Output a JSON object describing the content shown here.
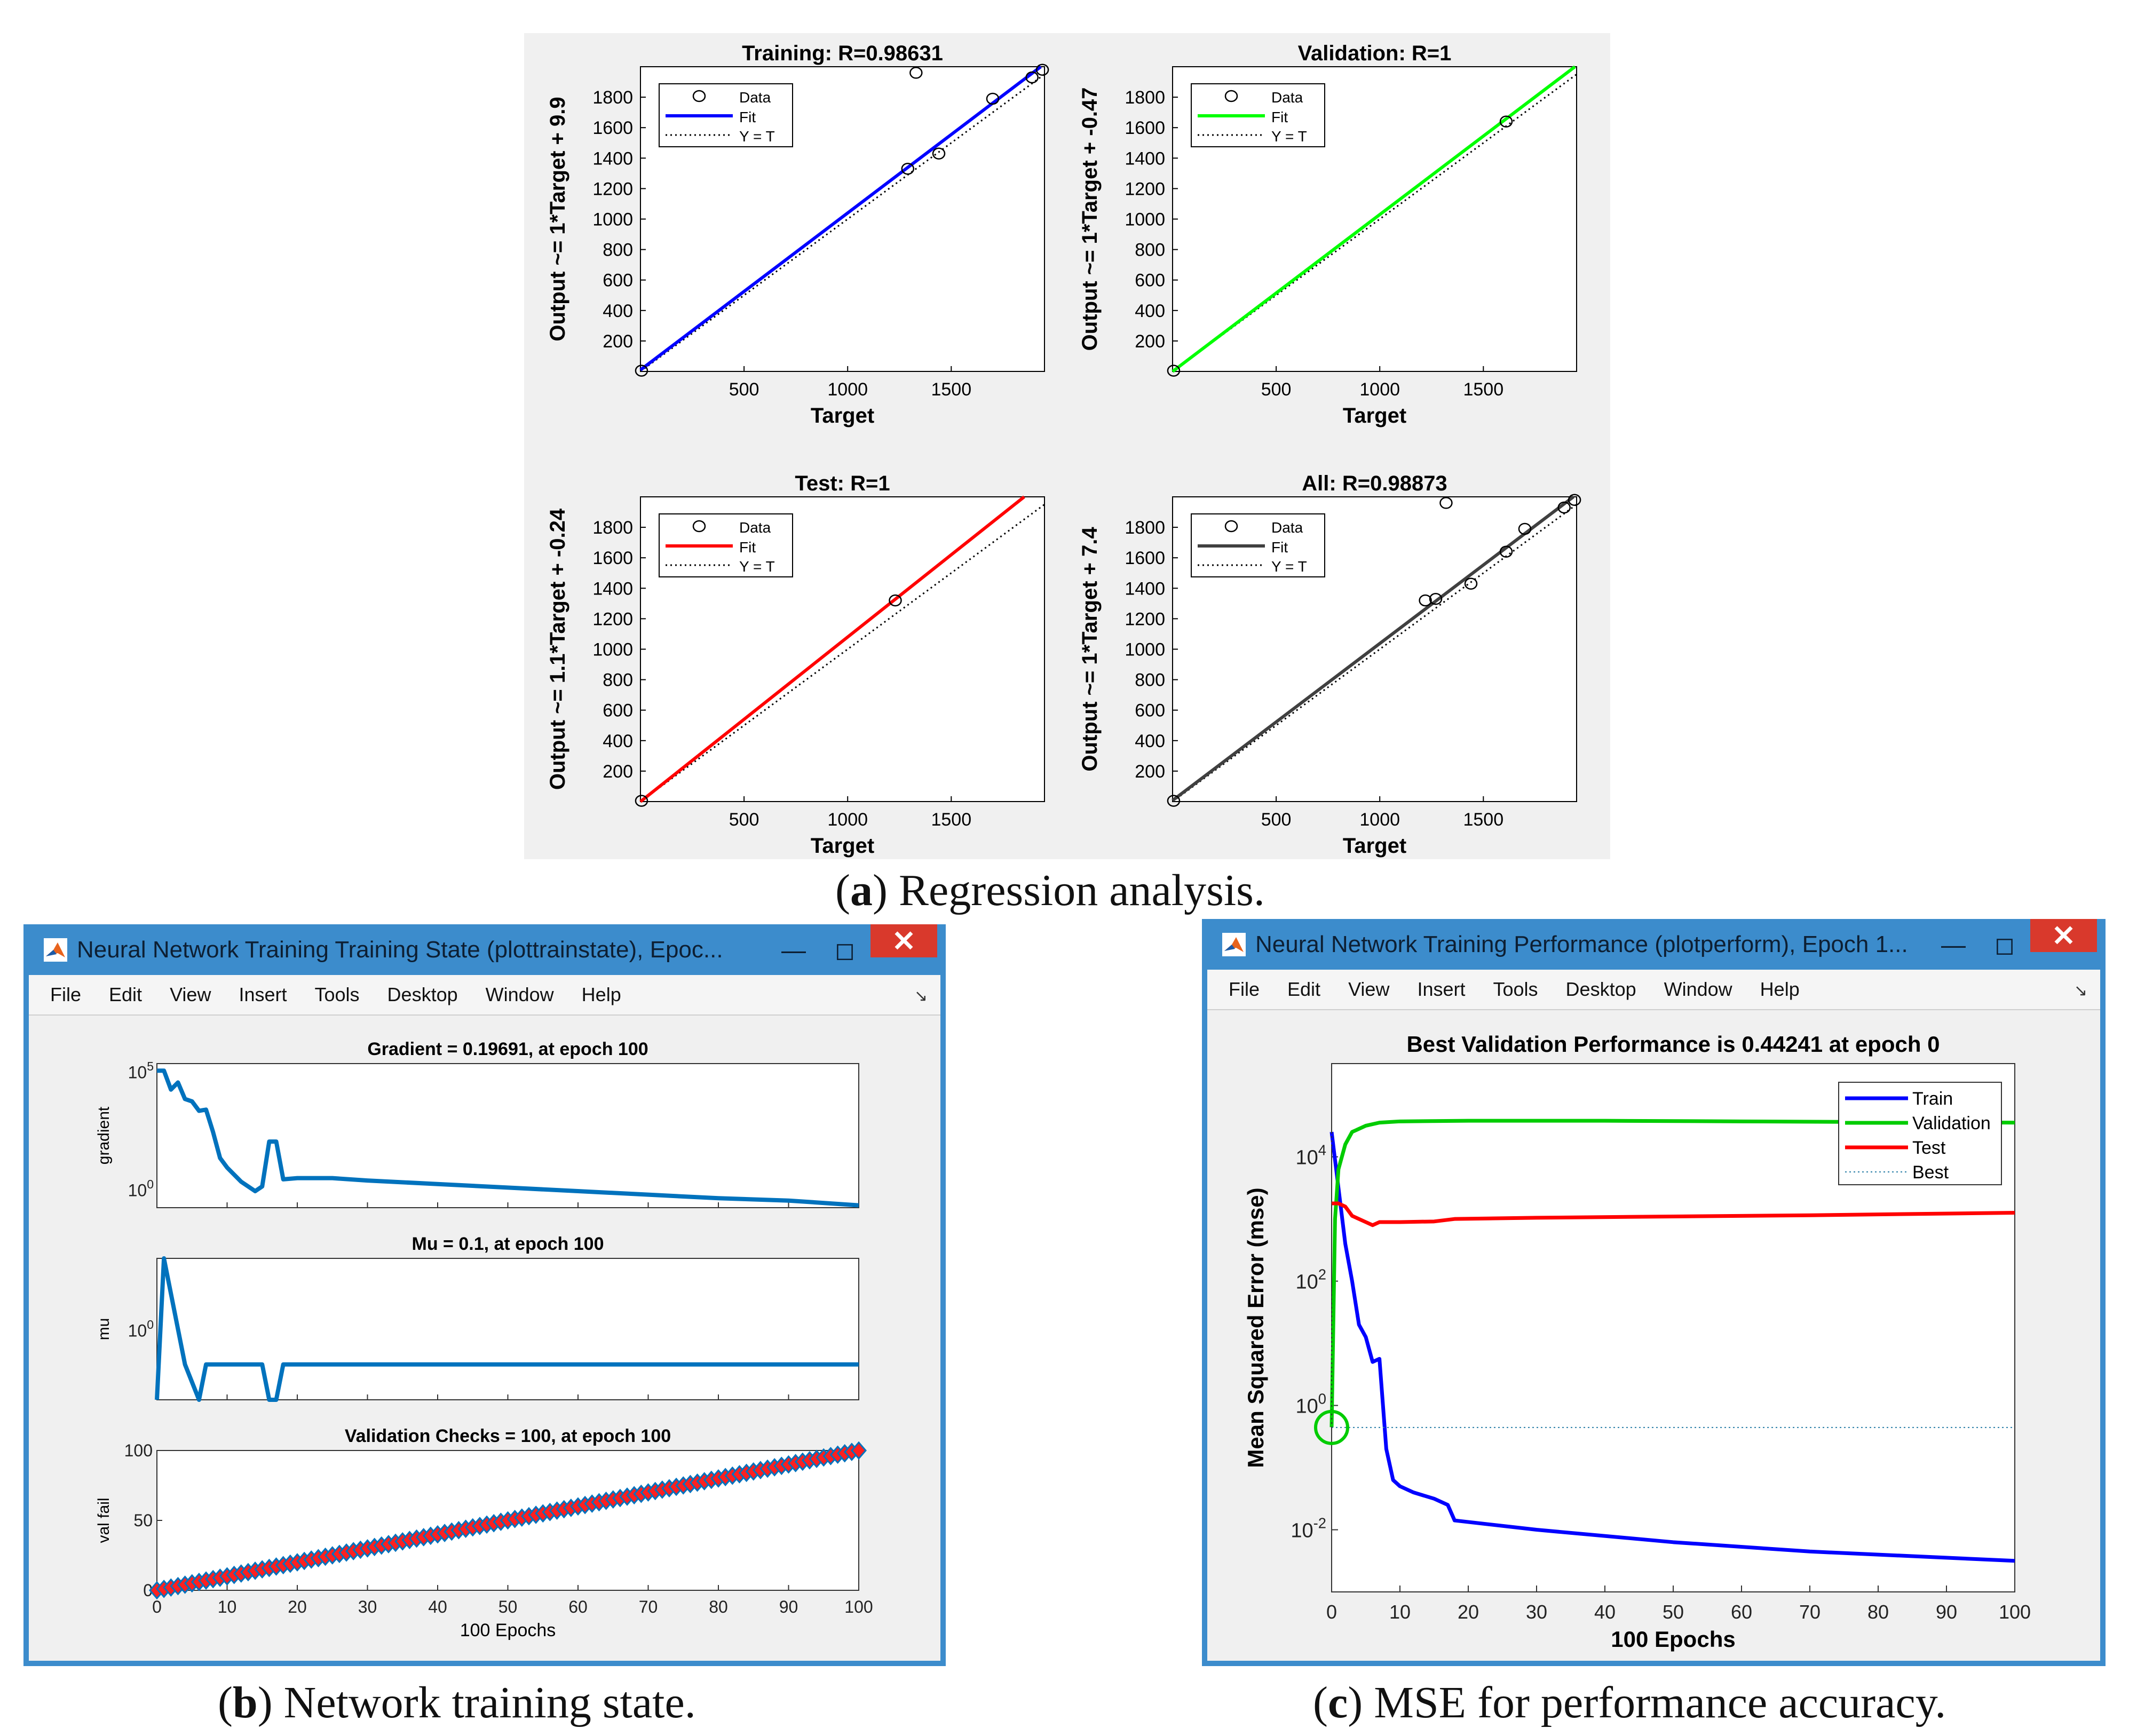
{
  "captions": {
    "a": {
      "letter": "a",
      "text": ") Regression analysis."
    },
    "b": {
      "letter": "b",
      "text": ") Network training state."
    },
    "c": {
      "letter": "c",
      "text": ") MSE for performance accuracy."
    }
  },
  "regression": {
    "common": {
      "xlabel": "Target",
      "xticks": [
        "500",
        "1000",
        "1500"
      ],
      "yticks": [
        "200",
        "400",
        "600",
        "800",
        "1000",
        "1200",
        "1400",
        "1600",
        "1800"
      ],
      "legend": [
        "Data",
        "Fit",
        "Y = T"
      ]
    },
    "plots": [
      {
        "title": "Training: R=0.98631",
        "ylabel": "Output ~= 1*Target + 9.9",
        "color": "#0000ff"
      },
      {
        "title": "Validation: R=1",
        "ylabel": "Output ~= 1*Target + -0.47",
        "color": "#00ff00"
      },
      {
        "title": "Test: R=1",
        "ylabel": "Output ~= 1.1*Target + -0.24",
        "color": "#ff0000"
      },
      {
        "title": "All: R=0.98873",
        "ylabel": "Output ~= 1*Target + 7.4",
        "color": "#404040"
      }
    ]
  },
  "window_b": {
    "title": "Neural Network Training Training State (plottrainstate), Epoc...",
    "menu": [
      "File",
      "Edit",
      "View",
      "Insert",
      "Tools",
      "Desktop",
      "Window",
      "Help"
    ],
    "gradient": {
      "title": "Gradient = 0.19691, at epoch 100",
      "ylabel": "gradient",
      "ytick_top": "10",
      "ytick_top_exp": "5",
      "ytick_bottom": "10",
      "ytick_bottom_exp": "0"
    },
    "mu": {
      "title": "Mu = 0.1, at epoch 100",
      "ylabel": "mu",
      "ytick": "10",
      "ytick_exp": "0"
    },
    "val": {
      "title": "Validation Checks = 100, at epoch 100",
      "ylabel": "val fail",
      "yticks": [
        "0",
        "50",
        "100"
      ]
    },
    "xticks": [
      "0",
      "10",
      "20",
      "30",
      "40",
      "50",
      "60",
      "70",
      "80",
      "90",
      "100"
    ],
    "xlabel": "100 Epochs"
  },
  "window_c": {
    "title": "Neural Network Training Performance (plotperform), Epoch 1...",
    "menu": [
      "File",
      "Edit",
      "View",
      "Insert",
      "Tools",
      "Desktop",
      "Window",
      "Help"
    ],
    "plot_title": "Best Validation Performance is 0.44241 at epoch 0",
    "ylabel": "Mean Squared Error  (mse)",
    "xlabel": "100 Epochs",
    "xticks": [
      "0",
      "10",
      "20",
      "30",
      "40",
      "50",
      "60",
      "70",
      "80",
      "90",
      "100"
    ],
    "yticks": [
      {
        "base": "10",
        "exp": "4"
      },
      {
        "base": "10",
        "exp": "2"
      },
      {
        "base": "10",
        "exp": "0"
      },
      {
        "base": "10",
        "exp": "-2"
      }
    ],
    "legend": [
      "Train",
      "Validation",
      "Test",
      "Best"
    ]
  },
  "colors": {
    "train": "#0000ff",
    "validation": "#00cc00",
    "test": "#ff0000",
    "best": "#2b7fa7",
    "matlab_line": "#0072bd",
    "marker_red": "#ff2020",
    "titlebar": "#3c8ccc",
    "close": "#d9392c"
  },
  "chart_data": [
    {
      "type": "scatter",
      "title": "Training: R=0.98631",
      "xlabel": "Target",
      "ylabel": "Output ~= 1*Target + 9.9",
      "xlim": [
        0,
        1950
      ],
      "ylim": [
        0,
        2000
      ],
      "points": [
        [
          5,
          5
        ],
        [
          1290,
          1330
        ],
        [
          1330,
          1960
        ],
        [
          1440,
          1430
        ],
        [
          1700,
          1790
        ],
        [
          1890,
          1930
        ],
        [
          1940,
          1980
        ]
      ],
      "fit": {
        "slope": 1.03,
        "intercept": 9.9
      }
    },
    {
      "type": "scatter",
      "title": "Validation: R=1",
      "xlabel": "Target",
      "ylabel": "Output ~= 1*Target + -0.47",
      "xlim": [
        0,
        1950
      ],
      "ylim": [
        0,
        2000
      ],
      "points": [
        [
          5,
          5
        ],
        [
          1610,
          1640
        ]
      ],
      "fit": {
        "slope": 1.03,
        "intercept": -0.47
      }
    },
    {
      "type": "scatter",
      "title": "Test: R=1",
      "xlabel": "Target",
      "ylabel": "Output ~= 1.1*Target + -0.24",
      "xlim": [
        0,
        1950
      ],
      "ylim": [
        0,
        2000
      ],
      "points": [
        [
          5,
          5
        ],
        [
          1230,
          1320
        ]
      ],
      "fit": {
        "slope": 1.08,
        "intercept": -0.24
      }
    },
    {
      "type": "scatter",
      "title": "All: R=0.98873",
      "xlabel": "Target",
      "ylabel": "Output ~= 1*Target + 7.4",
      "xlim": [
        0,
        1950
      ],
      "ylim": [
        0,
        2000
      ],
      "points": [
        [
          5,
          5
        ],
        [
          1220,
          1320
        ],
        [
          1270,
          1330
        ],
        [
          1320,
          1960
        ],
        [
          1440,
          1430
        ],
        [
          1610,
          1640
        ],
        [
          1700,
          1790
        ],
        [
          1890,
          1930
        ],
        [
          1940,
          1980
        ]
      ],
      "fit": {
        "slope": 1.03,
        "intercept": 7.4
      }
    },
    {
      "type": "line",
      "title": "Gradient = 0.19691, at epoch 100",
      "ylabel": "gradient",
      "yscale": "log",
      "ylim_log10": [
        -0.8,
        5.3
      ],
      "xlim": [
        0,
        100
      ],
      "x": [
        0,
        1,
        2,
        3,
        4,
        5,
        6,
        7,
        8,
        9,
        10,
        12,
        14,
        15,
        16,
        17,
        18,
        20,
        25,
        30,
        40,
        50,
        60,
        70,
        80,
        90,
        100
      ],
      "log10_values": [
        5,
        5,
        4.2,
        4.5,
        3.8,
        3.7,
        3.3,
        3.35,
        2.4,
        1.3,
        0.9,
        0.3,
        -0.1,
        0.1,
        2.0,
        2.0,
        0.4,
        0.45,
        0.45,
        0.35,
        0.2,
        0.05,
        -0.1,
        -0.25,
        -0.4,
        -0.5,
        -0.7
      ]
    },
    {
      "type": "line",
      "title": "Mu = 0.1, at epoch 100",
      "ylabel": "mu",
      "yscale": "log",
      "ylim_log10": [
        -2,
        2
      ],
      "xlim": [
        0,
        100
      ],
      "x": [
        0,
        1,
        2,
        3,
        4,
        5,
        6,
        7,
        8,
        9,
        10,
        11,
        12,
        13,
        14,
        15,
        16,
        17,
        18,
        100
      ],
      "log10_values": [
        -2,
        2,
        1,
        0,
        -1,
        -1.5,
        -2,
        -1,
        -1,
        -1,
        -1,
        -1,
        -1,
        -1,
        -1,
        -1,
        -2,
        -2,
        -1,
        -1
      ],
      "note": "value levels approximated from steps"
    },
    {
      "type": "line",
      "title": "Validation Checks = 100, at epoch 100",
      "ylabel": "val fail",
      "xlim": [
        0,
        100
      ],
      "ylim": [
        0,
        100
      ],
      "x": [
        0,
        100
      ],
      "y": [
        0,
        100
      ],
      "markers": "every epoch"
    },
    {
      "type": "line",
      "title": "Best Validation Performance is 0.44241 at epoch 0",
      "xlabel": "100 Epochs",
      "ylabel": "Mean Squared Error  (mse)",
      "yscale": "log",
      "ylim_log10": [
        -3,
        5.5
      ],
      "xlim": [
        0,
        100
      ],
      "series": [
        {
          "name": "Train",
          "x": [
            0,
            1,
            2,
            3,
            4,
            5,
            6,
            7,
            8,
            9,
            10,
            12,
            15,
            17,
            18,
            30,
            50,
            70,
            100
          ],
          "log10_values": [
            4.4,
            3.5,
            2.6,
            2.0,
            1.3,
            1.1,
            0.7,
            0.75,
            -0.7,
            -1.2,
            -1.3,
            -1.4,
            -1.5,
            -1.6,
            -1.85,
            -2.0,
            -2.2,
            -2.35,
            -2.5
          ]
        },
        {
          "name": "Validation",
          "x": [
            0,
            0.5,
            1,
            2,
            3,
            5,
            7,
            10,
            20,
            40,
            60,
            80,
            100
          ],
          "log10_values": [
            -0.35,
            3.0,
            3.8,
            4.2,
            4.4,
            4.5,
            4.55,
            4.57,
            4.58,
            4.58,
            4.57,
            4.56,
            4.55
          ]
        },
        {
          "name": "Test",
          "x": [
            0,
            1,
            2,
            3,
            5,
            6,
            7,
            10,
            15,
            18,
            30,
            50,
            70,
            100
          ],
          "log10_values": [
            3.25,
            3.25,
            3.2,
            3.05,
            2.95,
            2.9,
            2.95,
            2.95,
            2.96,
            3.0,
            3.02,
            3.04,
            3.06,
            3.1
          ]
        },
        {
          "name": "Best",
          "x": [
            0,
            100
          ],
          "log10_values": [
            -0.354,
            -0.354
          ]
        }
      ],
      "best_point": {
        "epoch": 0,
        "value": 0.44241
      }
    }
  ]
}
